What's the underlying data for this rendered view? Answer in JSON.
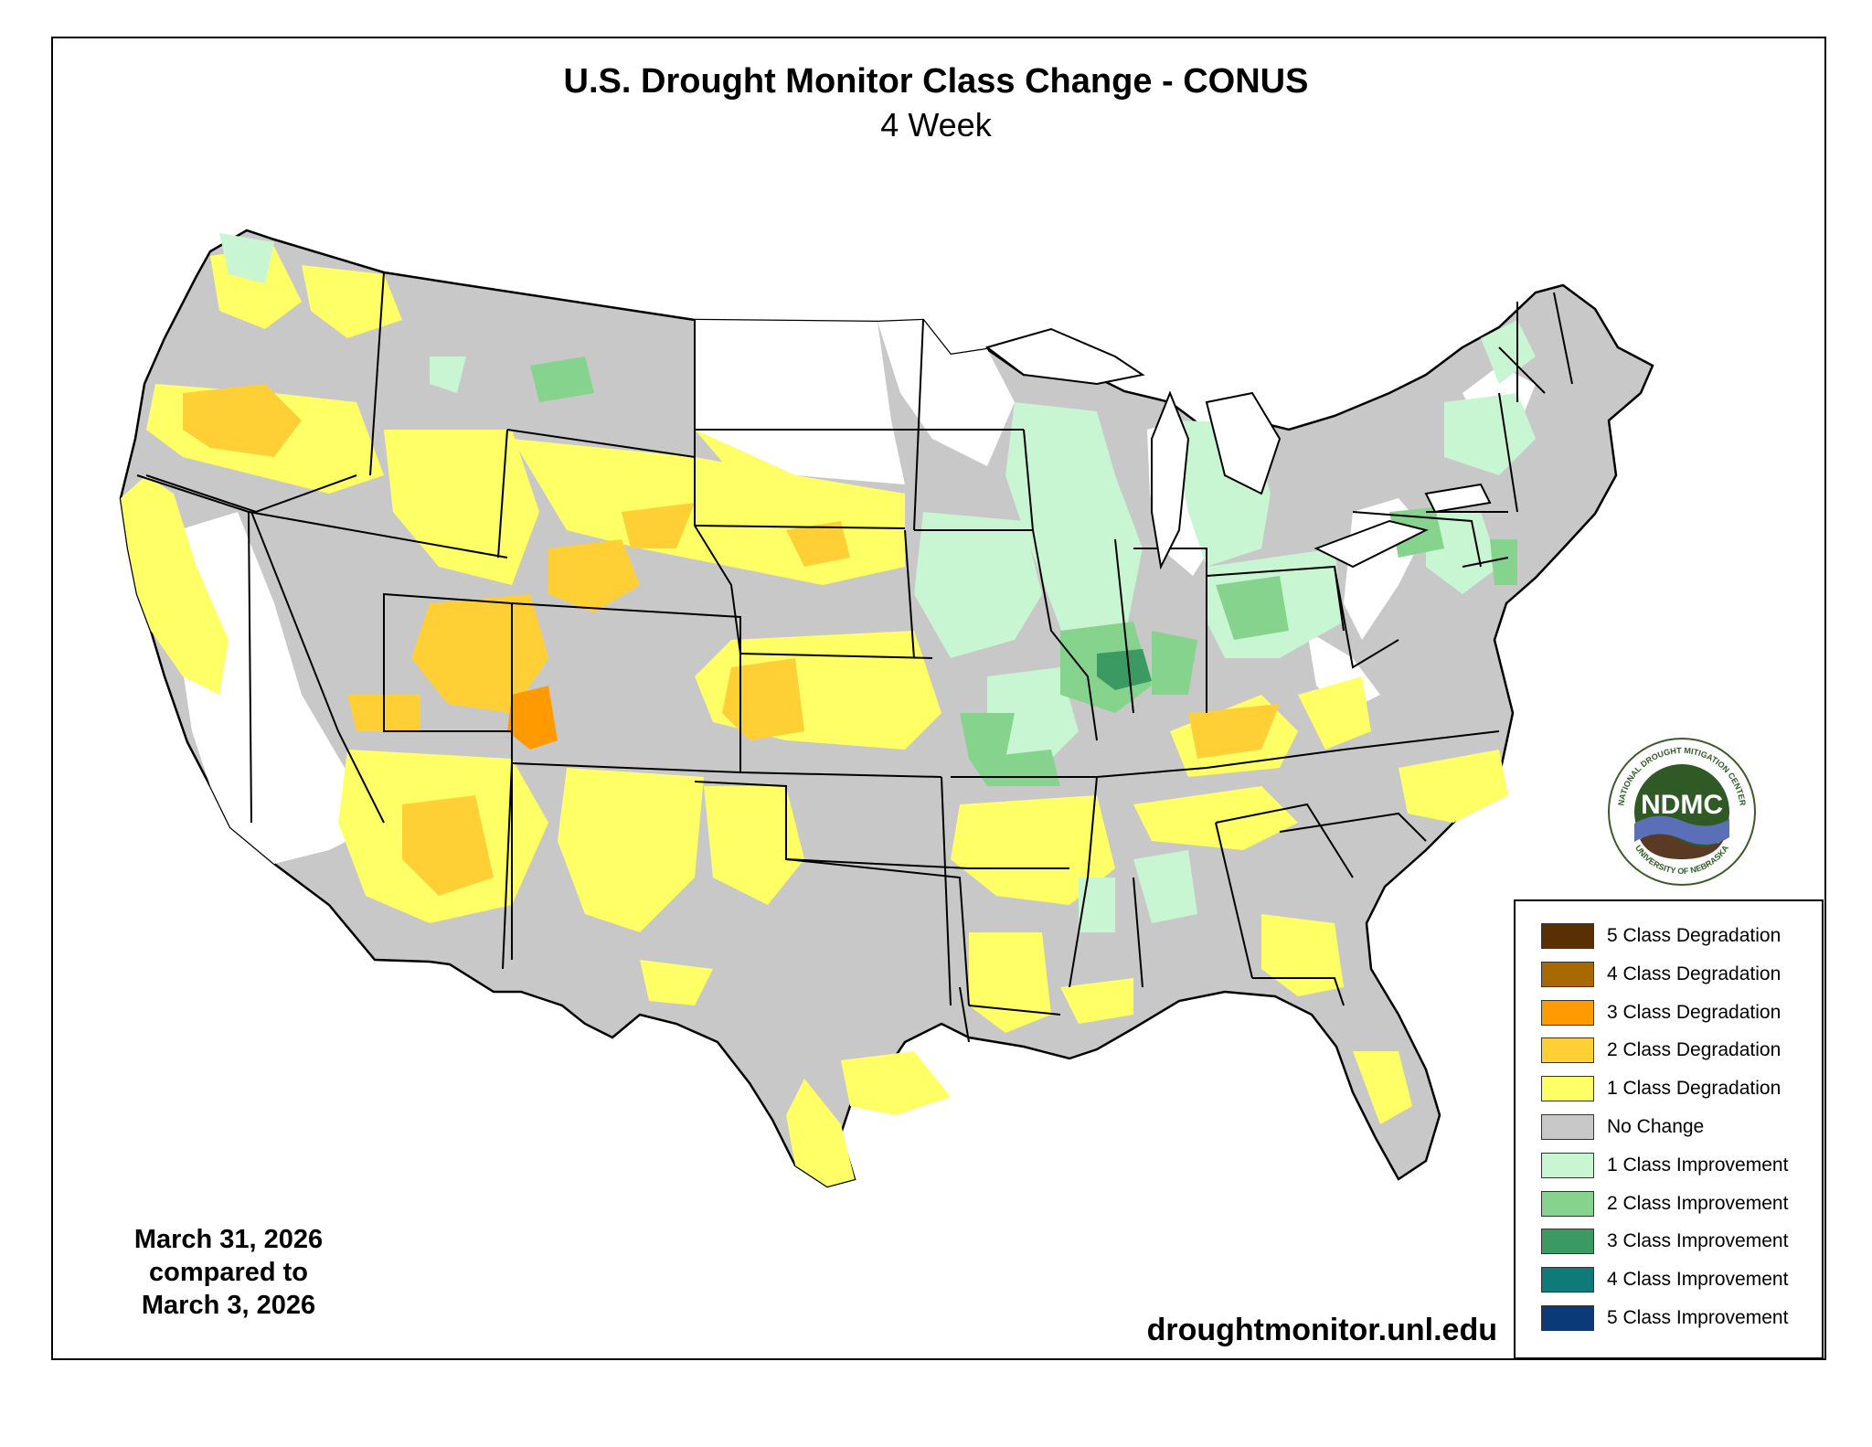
{
  "header": {
    "title": "U.S. Drought Monitor Class Change - CONUS",
    "subtitle": "4 Week"
  },
  "dates": {
    "current": "March 31, 2026",
    "compared_label": "compared to",
    "previous": "March 3, 2026"
  },
  "website": "droughtmonitor.unl.edu",
  "logo": {
    "text": "NDMC",
    "ring_top": "NATIONAL DROUGHT MITIGATION CENTER",
    "ring_bottom": "UNIVERSITY OF NEBRASKA"
  },
  "legend": {
    "items": [
      {
        "label": "5 Class Degradation",
        "color": "#5a3000"
      },
      {
        "label": "4 Class Degradation",
        "color": "#a86a00"
      },
      {
        "label": "3 Class Degradation",
        "color": "#ff9a00"
      },
      {
        "label": "2 Class Degradation",
        "color": "#ffd036"
      },
      {
        "label": "1 Class Degradation",
        "color": "#ffff66"
      },
      {
        "label": "No Change",
        "color": "#c8c8c8"
      },
      {
        "label": "1 Class Improvement",
        "color": "#c8f5d2"
      },
      {
        "label": "2 Class Improvement",
        "color": "#86d38e"
      },
      {
        "label": "3 Class Improvement",
        "color": "#3a9a62"
      },
      {
        "label": "4 Class Improvement",
        "color": "#0f7a7a"
      },
      {
        "label": "5 Class Improvement",
        "color": "#0a3a78"
      }
    ]
  }
}
